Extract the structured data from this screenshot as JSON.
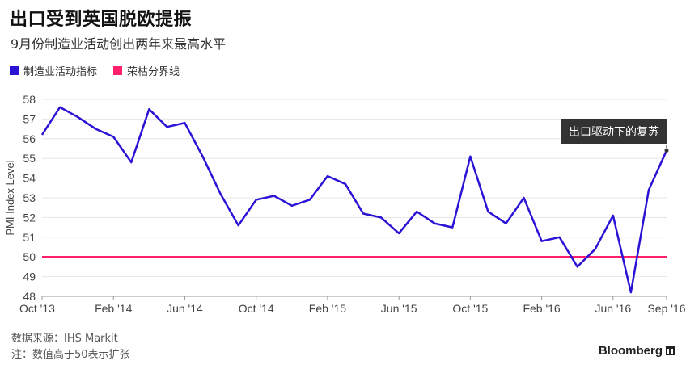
{
  "header": {
    "title": "出口受到英国脱欧提振",
    "subtitle": "9月份制造业活动创出两年来最高水平"
  },
  "legend": [
    {
      "label": "制造业活动指标",
      "color": "#2b13d6"
    },
    {
      "label": "荣枯分界线",
      "color": "#ff1f6b"
    }
  ],
  "annotation": {
    "text": "出口驱动下的复苏"
  },
  "footer": {
    "source": "数据来源：IHS Markit",
    "note": "注：数值高于50表示扩张",
    "brand": "Bloomberg"
  },
  "chart_data": {
    "type": "line",
    "ylabel": "PMI Index Level",
    "ylim": [
      48,
      58
    ],
    "yticks": [
      48,
      49,
      50,
      51,
      52,
      53,
      54,
      55,
      56,
      57,
      58
    ],
    "xtick_labels": [
      "Oct '13",
      "Feb '14",
      "Jun '14",
      "Oct '14",
      "Feb '15",
      "Jun '15",
      "Oct '15",
      "Feb '16",
      "Jun '16",
      "Sep '16"
    ],
    "grid": true,
    "series": [
      {
        "name": "制造业活动指标",
        "color": "#2b13d6",
        "x": [
          "2013-10",
          "2013-11",
          "2013-12",
          "2014-01",
          "2014-02",
          "2014-03",
          "2014-04",
          "2014-05",
          "2014-06",
          "2014-07",
          "2014-08",
          "2014-09",
          "2014-10",
          "2014-11",
          "2014-12",
          "2015-01",
          "2015-02",
          "2015-03",
          "2015-04",
          "2015-05",
          "2015-06",
          "2015-07",
          "2015-08",
          "2015-09",
          "2015-10",
          "2015-11",
          "2015-12",
          "2016-01",
          "2016-02",
          "2016-03",
          "2016-04",
          "2016-05",
          "2016-06",
          "2016-07",
          "2016-08",
          "2016-09"
        ],
        "values": [
          56.2,
          57.6,
          57.1,
          56.5,
          56.1,
          54.8,
          57.5,
          56.6,
          56.8,
          55.1,
          53.2,
          51.6,
          52.9,
          53.1,
          52.6,
          52.9,
          54.1,
          53.7,
          52.2,
          52.0,
          51.2,
          52.3,
          51.7,
          51.5,
          55.1,
          52.3,
          51.7,
          53.0,
          50.8,
          51.0,
          49.5,
          50.4,
          52.1,
          48.2,
          53.4,
          55.4
        ]
      },
      {
        "name": "荣枯分界线",
        "color": "#ff1f6b",
        "constant": 50
      }
    ]
  }
}
